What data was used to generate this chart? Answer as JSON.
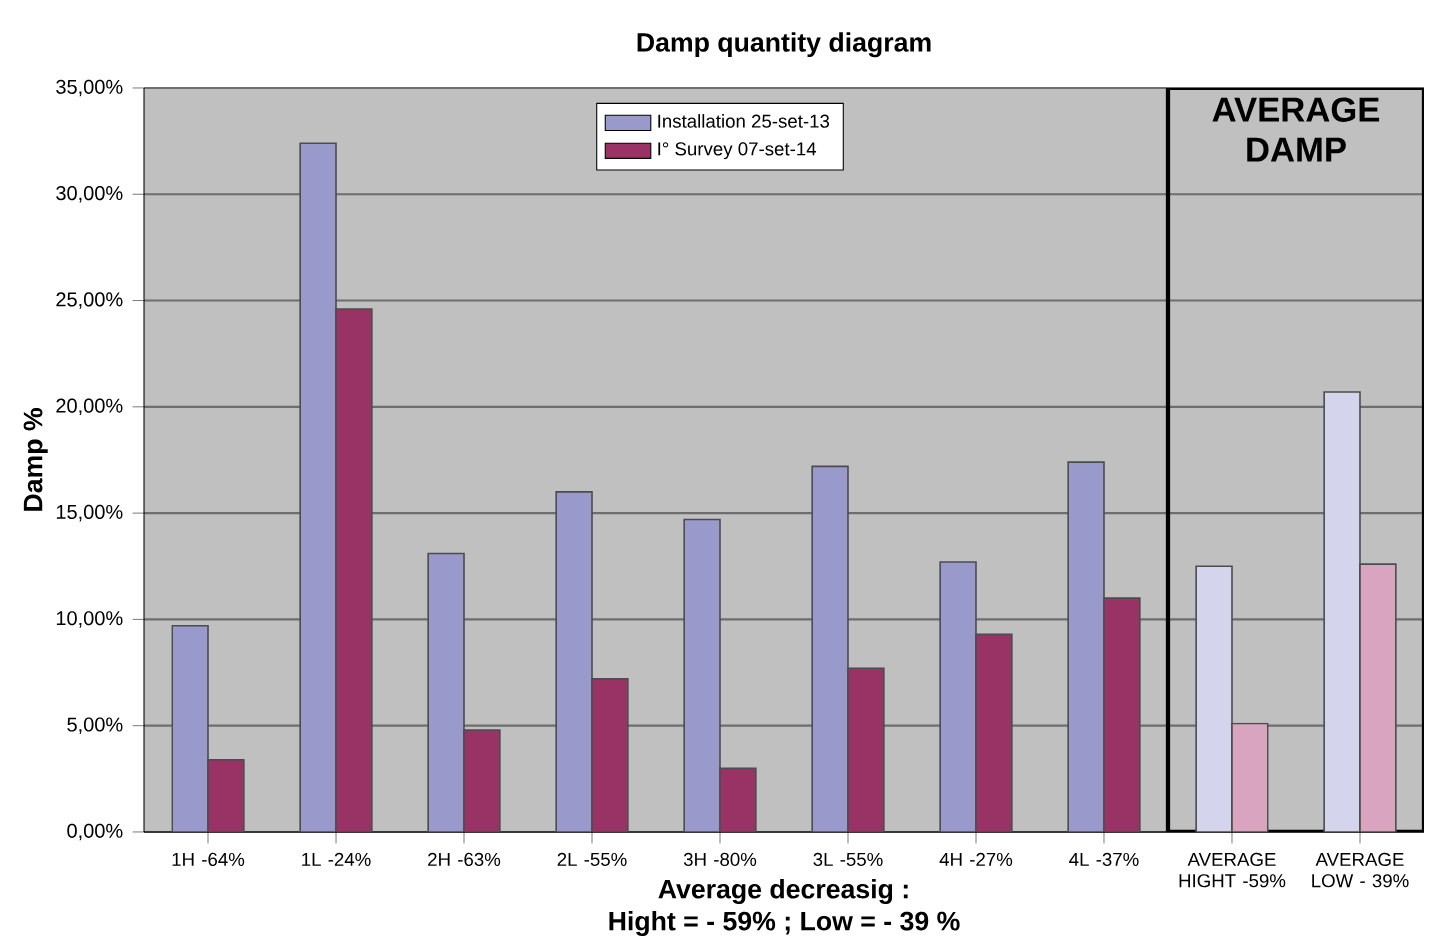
{
  "chart_data": {
    "type": "bar",
    "title": "Damp quantity diagram",
    "xlabel": "Average decreasig :",
    "ylabel": "Damp %",
    "annotations": [
      "Hight = - 59% ; Low = - 39 %",
      "AVERAGE DAMP"
    ],
    "categories": [
      "1H  -64%",
      "1L  -24%",
      "2H  -63%",
      "2L  -55%",
      "3H  -80%",
      "3L  -55%",
      "4H  -27%",
      "4L  -37%",
      "AVERAGE HIGHT -59%",
      "AVERAGE LOW - 39%"
    ],
    "series": [
      {
        "name": "Installation 25-set-13",
        "color": "#9999cc",
        "colors": [
          "#9999cc",
          "#9999cc",
          "#9999cc",
          "#9999cc",
          "#9999cc",
          "#9999cc",
          "#9999cc",
          "#9999cc",
          "#d4d4ec",
          "#d4d4ec"
        ],
        "values": [
          9.7,
          32.4,
          13.1,
          16.0,
          14.7,
          17.2,
          12.7,
          17.4,
          12.5,
          20.7
        ]
      },
      {
        "name": "I° Survey 07-set-14",
        "color": "#993366",
        "colors": [
          "#993366",
          "#993366",
          "#993366",
          "#993366",
          "#993366",
          "#993366",
          "#993366",
          "#993366",
          "#d8a4c0",
          "#d8a4c0"
        ],
        "values": [
          3.4,
          24.6,
          4.8,
          7.2,
          3.0,
          7.7,
          9.3,
          11.0,
          5.1,
          12.6
        ]
      }
    ],
    "ylim": [
      0,
      35
    ],
    "yticks": [
      {
        "value": 0,
        "label": "0,00%"
      },
      {
        "value": 5,
        "label": "5,00%"
      },
      {
        "value": 10,
        "label": "10,00%"
      },
      {
        "value": 15,
        "label": "15,00%"
      },
      {
        "value": 20,
        "label": "20,00%"
      },
      {
        "value": 25,
        "label": "25,00%"
      },
      {
        "value": 30,
        "label": "30,00%"
      },
      {
        "value": 35,
        "label": "35,00%"
      }
    ],
    "grid": "y",
    "legend": "top"
  }
}
